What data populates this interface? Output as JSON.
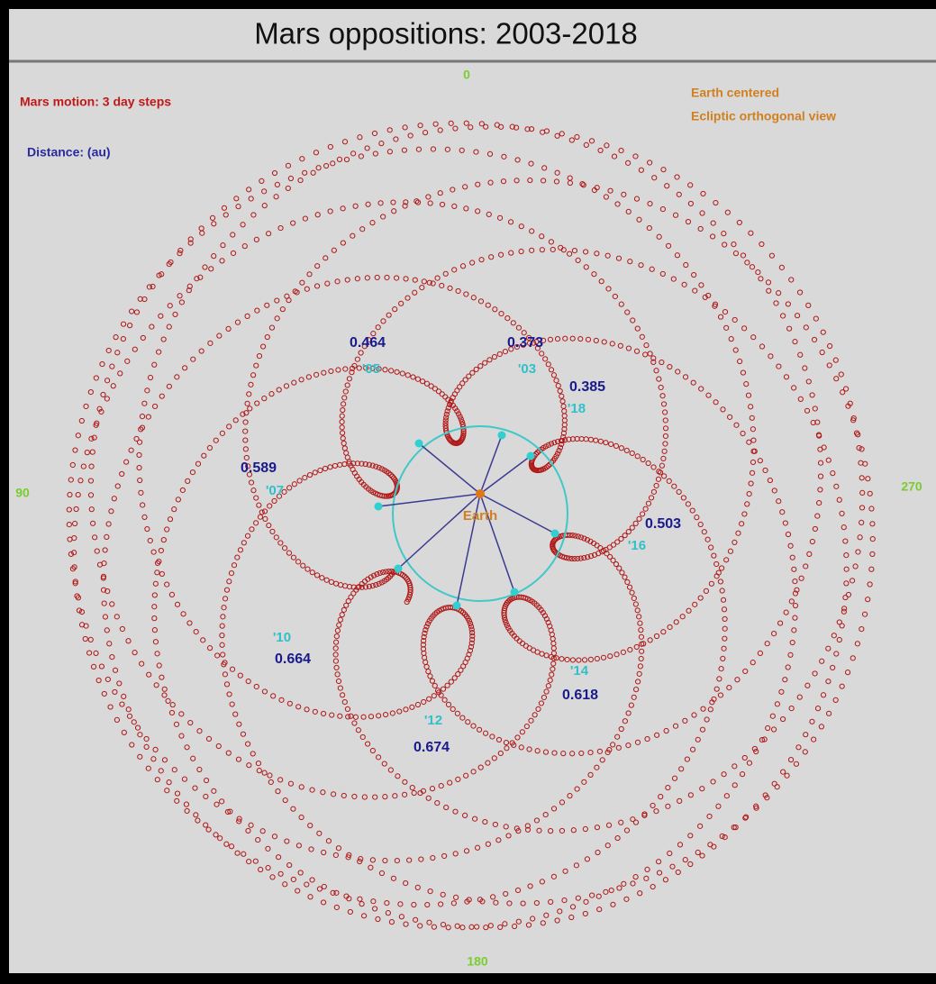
{
  "title": "Mars oppositions:  2003-2018",
  "legend": {
    "motion": "Mars motion: 3 day steps",
    "distance": "Distance: (au)",
    "center": "Earth centered",
    "view": "Ecliptic orthogonal view"
  },
  "angles": [
    "0",
    "90",
    "180",
    "270"
  ],
  "earth": "Earth",
  "oppositions": [
    {
      "year": "'03",
      "distance": 0.373
    },
    {
      "year": "'05",
      "distance": 0.464
    },
    {
      "year": "'07",
      "distance": 0.589
    },
    {
      "year": "'10",
      "distance": 0.664
    },
    {
      "year": "'12",
      "distance": 0.674
    },
    {
      "year": "'14",
      "distance": 0.618
    },
    {
      "year": "'16",
      "distance": 0.503
    },
    {
      "year": "'18",
      "distance": 0.385
    }
  ]
}
